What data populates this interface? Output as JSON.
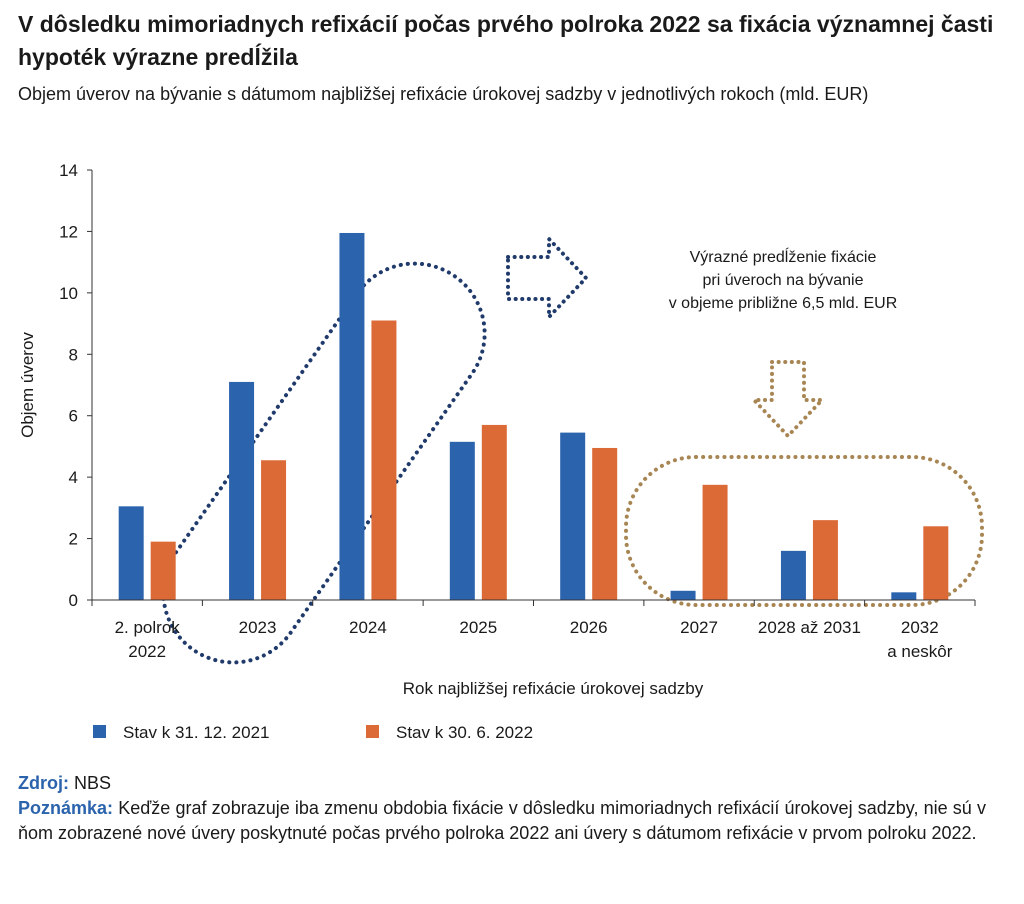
{
  "header": {
    "title": "V dôsledku mimoriadnych refixácií počas prvého polroka 2022 sa fixácia významnej časti hypoték výrazne predĺžila",
    "subtitle": "Objem úverov na bývanie s dátumom najbližšej refixácie úrokovej sadzby v jednotlivých rokoch (mld. EUR)"
  },
  "chart_data": {
    "type": "bar",
    "categories": [
      [
        "2. polrok",
        "2022"
      ],
      [
        "2023"
      ],
      [
        "2024"
      ],
      [
        "2025"
      ],
      [
        "2026"
      ],
      [
        "2027"
      ],
      [
        "2028 až 2031"
      ],
      [
        "2032",
        "a neskôr"
      ]
    ],
    "series": [
      {
        "name": "Stav k 31. 12. 2021",
        "color": "#2b64ad",
        "values": [
          3.05,
          7.1,
          11.95,
          5.15,
          5.45,
          0.3,
          1.6,
          0.25
        ]
      },
      {
        "name": "Stav k 30. 6. 2022",
        "color": "#dc6a37",
        "values": [
          1.9,
          4.55,
          9.1,
          5.7,
          4.95,
          3.75,
          2.6,
          2.4
        ]
      }
    ],
    "ylabel": "Objem úverov",
    "xlabel": "Rok najbližšej refixácie úrokovej sadzby",
    "ylim": [
      0,
      14
    ],
    "yticks": [
      0,
      2,
      4,
      6,
      8,
      10,
      12,
      14
    ],
    "annotation": [
      "Výrazné predĺženie fixácie",
      "pri úveroch na bývanie",
      "v objeme približne 6,5 mld. EUR"
    ],
    "highlight_colors": {
      "left": "#1f3a6b",
      "right": "#a88654"
    }
  },
  "footer": {
    "source_label": "Zdroj:",
    "source_value": "NBS",
    "note_label": "Poznámka:",
    "note_text": "Keďže graf zobrazuje iba zmenu obdobia fixácie v dôsledku mimoriadnych refixácií úrokovej sadzby, nie sú v ňom zobrazené nové úvery poskytnuté počas prvého polroka 2022 ani úvery s dátumom refixácie v prvom polroku 2022."
  }
}
